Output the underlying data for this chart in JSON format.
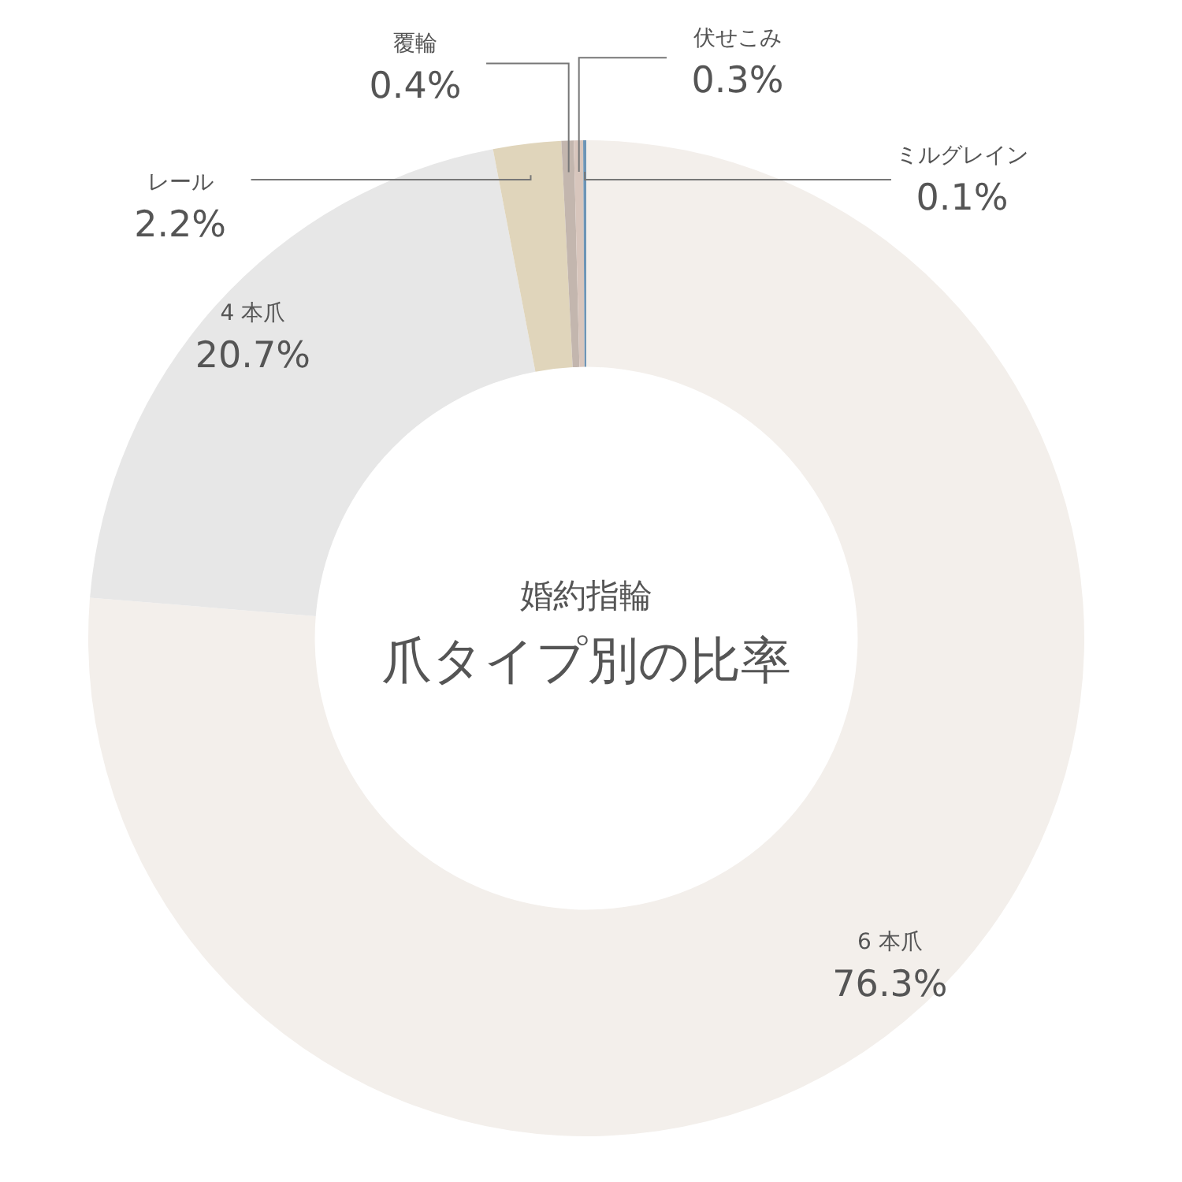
{
  "chart_data": {
    "type": "donut",
    "title": "爪タイプ別の比率",
    "subtitle": "婚約指輪",
    "categories": [
      "6 本爪",
      "4 本爪",
      "レール",
      "覆輪",
      "伏せこみ",
      "ミルグレイン"
    ],
    "values": [
      76.3,
      20.7,
      2.2,
      0.4,
      0.3,
      0.1
    ],
    "colors": [
      "#f3efeb",
      "#e7e7e7",
      "#e0d5bb",
      "#c3b6ae",
      "#d8c6bd",
      "#6d95b6"
    ],
    "value_labels": [
      "76.3%",
      "20.7%",
      "2.2%",
      "0.4%",
      "0.3%",
      "0.1%"
    ]
  }
}
